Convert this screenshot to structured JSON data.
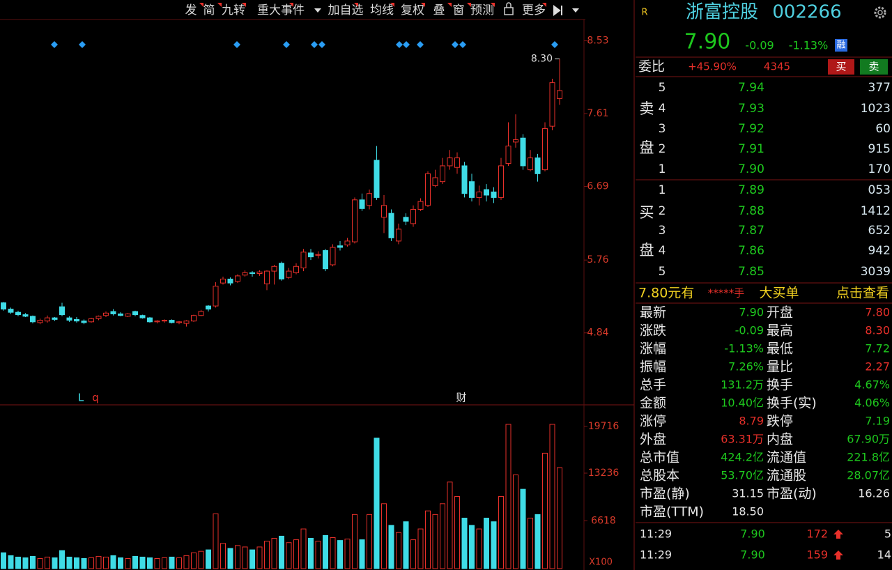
{
  "toolbar": {
    "items": [
      "发",
      "简",
      "九转",
      "重大事件",
      "加自选",
      "均线",
      "复权",
      "叠",
      "窗",
      "预测",
      "更多"
    ]
  },
  "kline": {
    "type": "candlestick",
    "up_color": "#e8302a",
    "down_color": "#3fdce6",
    "ylim": [
      3.94,
      8.78
    ],
    "yticks": [
      8.53,
      7.61,
      6.69,
      5.76,
      4.84
    ],
    "high_label": "8.30",
    "markers": [
      "L",
      "q",
      "财"
    ],
    "candles": [
      {
        "open": 5.22,
        "close": 5.14,
        "high": 5.23,
        "low": 5.12
      },
      {
        "open": 5.14,
        "close": 5.1,
        "high": 5.16,
        "low": 5.08
      },
      {
        "open": 5.1,
        "close": 5.07,
        "high": 5.12,
        "low": 5.05
      },
      {
        "open": 5.07,
        "close": 5.05,
        "high": 5.09,
        "low": 5.04
      },
      {
        "open": 5.05,
        "close": 4.98,
        "high": 5.06,
        "low": 4.96
      },
      {
        "open": 4.97,
        "close": 5.0,
        "high": 5.02,
        "low": 4.95
      },
      {
        "open": 4.99,
        "close": 5.03,
        "high": 5.06,
        "low": 4.97
      },
      {
        "open": 5.03,
        "close": 5.01,
        "high": 5.04,
        "low": 4.99
      },
      {
        "open": 5.17,
        "close": 5.07,
        "high": 5.22,
        "low": 5.05
      },
      {
        "open": 5.03,
        "close": 5.0,
        "high": 5.05,
        "low": 4.98
      },
      {
        "open": 5.01,
        "close": 4.99,
        "high": 5.04,
        "low": 4.97
      },
      {
        "open": 4.99,
        "close": 4.97,
        "high": 5.01,
        "low": 4.95
      },
      {
        "open": 4.98,
        "close": 5.02,
        "high": 5.03,
        "low": 4.97
      },
      {
        "open": 5.02,
        "close": 5.05,
        "high": 5.06,
        "low": 5.0
      },
      {
        "open": 5.06,
        "close": 5.09,
        "high": 5.11,
        "low": 5.04
      },
      {
        "open": 5.11,
        "close": 5.08,
        "high": 5.14,
        "low": 5.06
      },
      {
        "open": 5.08,
        "close": 5.06,
        "high": 5.1,
        "low": 5.05
      },
      {
        "open": 5.05,
        "close": 5.08,
        "high": 5.09,
        "low": 5.04
      },
      {
        "open": 5.11,
        "close": 5.07,
        "high": 5.12,
        "low": 5.05
      },
      {
        "open": 5.06,
        "close": 5.03,
        "high": 5.07,
        "low": 5.02
      },
      {
        "open": 5.03,
        "close": 4.98,
        "high": 5.04,
        "low": 4.97
      },
      {
        "open": 4.98,
        "close": 4.99,
        "high": 5.0,
        "low": 4.96
      },
      {
        "open": 4.99,
        "close": 5.0,
        "high": 5.01,
        "low": 4.97
      },
      {
        "open": 5.0,
        "close": 4.97,
        "high": 5.01,
        "low": 4.96
      },
      {
        "open": 4.97,
        "close": 4.98,
        "high": 4.99,
        "low": 4.95
      },
      {
        "open": 4.96,
        "close": 4.99,
        "high": 5.0,
        "low": 4.92
      },
      {
        "open": 4.99,
        "close": 5.06,
        "high": 5.07,
        "low": 4.98
      },
      {
        "open": 5.06,
        "close": 5.11,
        "high": 5.13,
        "low": 5.05
      },
      {
        "open": 5.18,
        "close": 5.14,
        "high": 5.19,
        "low": 5.11
      },
      {
        "open": 5.18,
        "close": 5.43,
        "high": 5.48,
        "low": 5.16
      },
      {
        "open": 5.47,
        "close": 5.52,
        "high": 5.55,
        "low": 5.45
      },
      {
        "open": 5.52,
        "close": 5.47,
        "high": 5.54,
        "low": 5.44
      },
      {
        "open": 5.49,
        "close": 5.56,
        "high": 5.58,
        "low": 5.47
      },
      {
        "open": 5.57,
        "close": 5.6,
        "high": 5.63,
        "low": 5.55
      },
      {
        "open": 5.6,
        "close": 5.59,
        "high": 5.62,
        "low": 5.55
      },
      {
        "open": 5.59,
        "close": 5.61,
        "high": 5.63,
        "low": 5.56
      },
      {
        "open": 5.46,
        "close": 5.62,
        "high": 5.63,
        "low": 5.38
      },
      {
        "open": 5.62,
        "close": 5.68,
        "high": 5.7,
        "low": 5.45
      },
      {
        "open": 5.72,
        "close": 5.52,
        "high": 5.74,
        "low": 5.5
      },
      {
        "open": 5.54,
        "close": 5.62,
        "high": 5.66,
        "low": 5.52
      },
      {
        "open": 5.6,
        "close": 5.68,
        "high": 5.72,
        "low": 5.58
      },
      {
        "open": 5.66,
        "close": 5.86,
        "high": 5.9,
        "low": 5.62
      },
      {
        "open": 5.85,
        "close": 5.8,
        "high": 5.9,
        "low": 5.76
      },
      {
        "open": 5.82,
        "close": 5.83,
        "high": 5.87,
        "low": 5.78
      },
      {
        "open": 5.88,
        "close": 5.65,
        "high": 5.9,
        "low": 5.62
      },
      {
        "open": 5.7,
        "close": 5.92,
        "high": 5.96,
        "low": 5.68
      },
      {
        "open": 5.94,
        "close": 5.92,
        "high": 6.0,
        "low": 5.88
      },
      {
        "open": 5.95,
        "close": 6.0,
        "high": 6.04,
        "low": 5.93
      },
      {
        "open": 5.99,
        "close": 6.52,
        "high": 6.55,
        "low": 5.97
      },
      {
        "open": 6.52,
        "close": 6.41,
        "high": 6.6,
        "low": 6.38
      },
      {
        "open": 6.45,
        "close": 6.6,
        "high": 6.65,
        "low": 6.4
      },
      {
        "open": 7.02,
        "close": 6.55,
        "high": 7.2,
        "low": 6.52
      },
      {
        "open": 6.3,
        "close": 6.45,
        "high": 6.58,
        "low": 6.1
      },
      {
        "open": 6.35,
        "close": 6.04,
        "high": 6.4,
        "low": 6.0
      },
      {
        "open": 6.0,
        "close": 6.15,
        "high": 6.22,
        "low": 5.96
      },
      {
        "open": 6.3,
        "close": 6.25,
        "high": 6.35,
        "low": 6.2
      },
      {
        "open": 6.22,
        "close": 6.4,
        "high": 6.45,
        "low": 6.18
      },
      {
        "open": 6.4,
        "close": 6.5,
        "high": 6.54,
        "low": 6.38
      },
      {
        "open": 6.45,
        "close": 6.85,
        "high": 6.88,
        "low": 6.43
      },
      {
        "open": 6.7,
        "close": 6.8,
        "high": 6.9,
        "low": 6.68
      },
      {
        "open": 6.75,
        "close": 6.95,
        "high": 7.05,
        "low": 6.72
      },
      {
        "open": 6.95,
        "close": 7.05,
        "high": 7.15,
        "low": 6.9
      },
      {
        "open": 6.93,
        "close": 7.05,
        "high": 7.12,
        "low": 6.85
      },
      {
        "open": 6.95,
        "close": 6.6,
        "high": 7.0,
        "low": 6.55
      },
      {
        "open": 6.75,
        "close": 6.55,
        "high": 6.85,
        "low": 6.5
      },
      {
        "open": 6.55,
        "close": 6.62,
        "high": 6.7,
        "low": 6.45
      },
      {
        "open": 6.65,
        "close": 6.58,
        "high": 6.72,
        "low": 6.5
      },
      {
        "open": 6.62,
        "close": 6.55,
        "high": 6.68,
        "low": 6.48
      },
      {
        "open": 6.55,
        "close": 6.95,
        "high": 7.05,
        "low": 6.52
      },
      {
        "open": 6.98,
        "close": 7.2,
        "high": 7.5,
        "low": 6.95
      },
      {
        "open": 7.25,
        "close": 7.28,
        "high": 7.6,
        "low": 7.18
      },
      {
        "open": 7.3,
        "close": 6.95,
        "high": 7.35,
        "low": 6.9
      },
      {
        "open": 6.9,
        "close": 7.05,
        "high": 7.15,
        "low": 6.88
      },
      {
        "open": 7.05,
        "close": 6.85,
        "high": 7.1,
        "low": 6.75
      },
      {
        "open": 6.9,
        "close": 7.42,
        "high": 7.5,
        "low": 6.88
      },
      {
        "open": 7.45,
        "close": 8.0,
        "high": 8.05,
        "low": 7.4
      },
      {
        "open": 7.8,
        "close": 7.9,
        "high": 8.3,
        "low": 7.72
      }
    ]
  },
  "volume": {
    "ylim": [
      0,
      21350
    ],
    "yticks": [
      19716,
      13236,
      6618
    ],
    "unit_label": "X100",
    "values": [
      2200,
      1800,
      1600,
      1500,
      1700,
      1400,
      1600,
      1500,
      2500,
      1600,
      1500,
      1400,
      1500,
      1700,
      1600,
      1800,
      1500,
      1400,
      1700,
      1600,
      1500,
      1400,
      1500,
      1600,
      1500,
      1800,
      2200,
      2400,
      2600,
      7600,
      3500,
      2800,
      3200,
      3000,
      2600,
      3000,
      3800,
      4200,
      4500,
      3600,
      4000,
      5500,
      4200,
      3800,
      4600,
      4300,
      3900,
      4100,
      7500,
      4000,
      7500,
      18100,
      9000,
      6000,
      5000,
      6500,
      4000,
      5500,
      8000,
      7500,
      9000,
      12000,
      10000,
      7000,
      6000,
      5500,
      7000,
      6500,
      10000,
      20000,
      13000,
      11000,
      7000,
      7500,
      16000,
      20000,
      14000
    ]
  },
  "header": {
    "flag": "R",
    "name": "浙富控股",
    "code": "002266"
  },
  "quote": {
    "price": "7.90",
    "change": "-0.09",
    "pct": "-1.13%",
    "badge": "融"
  },
  "weibi": {
    "label": "委比",
    "ratio": "+45.90%",
    "diff": "4345",
    "buy": "买",
    "sell": "卖"
  },
  "book": {
    "sell_side": [
      "卖",
      "盘"
    ],
    "buy_side": [
      "买",
      "盘"
    ],
    "asks": [
      {
        "level": "5",
        "price": "7.94",
        "vol": "377"
      },
      {
        "level": "4",
        "price": "7.93",
        "vol": "1023"
      },
      {
        "level": "3",
        "price": "7.92",
        "vol": "60"
      },
      {
        "level": "2",
        "price": "7.91",
        "vol": "915"
      },
      {
        "level": "1",
        "price": "7.90",
        "vol": "170"
      }
    ],
    "bids": [
      {
        "level": "1",
        "price": "7.89",
        "vol": "053"
      },
      {
        "level": "2",
        "price": "7.88",
        "vol": "1412"
      },
      {
        "level": "3",
        "price": "7.87",
        "vol": "652"
      },
      {
        "level": "4",
        "price": "7.86",
        "vol": "942"
      },
      {
        "level": "5",
        "price": "7.85",
        "vol": "3039"
      }
    ]
  },
  "big_order": {
    "price": "7.80元有",
    "qty": "*****手",
    "title": "大买单",
    "action": "点击查看"
  },
  "stats": [
    [
      {
        "label": "最新",
        "value": "7.90",
        "color": "#1ec81e"
      },
      {
        "label": "开盘",
        "value": "7.80",
        "color": "#e8302a"
      }
    ],
    [
      {
        "label": "涨跌",
        "value": "-0.09",
        "color": "#1ec81e"
      },
      {
        "label": "最高",
        "value": "8.30",
        "color": "#e8302a"
      }
    ],
    [
      {
        "label": "涨幅",
        "value": "-1.13%",
        "color": "#1ec81e"
      },
      {
        "label": "最低",
        "value": "7.72",
        "color": "#1ec81e"
      }
    ],
    [
      {
        "label": "振幅",
        "value": "7.26%",
        "color": "#1ec81e"
      },
      {
        "label": "量比",
        "value": "2.27",
        "color": "#e8302a"
      }
    ],
    [
      {
        "label": "总手",
        "value": "131.2万",
        "color": "#1ec81e"
      },
      {
        "label": "换手",
        "value": "4.67%",
        "color": "#1ec81e"
      }
    ],
    [
      {
        "label": "金额",
        "value": "10.40亿",
        "color": "#1ec81e"
      },
      {
        "label": "换手(实)",
        "value": "4.06%",
        "color": "#1ec81e"
      }
    ],
    [
      {
        "label": "涨停",
        "value": "8.79",
        "color": "#e8302a"
      },
      {
        "label": "跌停",
        "value": "7.19",
        "color": "#1ec81e"
      }
    ],
    [
      {
        "label": "外盘",
        "value": "63.31万",
        "color": "#e8302a"
      },
      {
        "label": "内盘",
        "value": "67.90万",
        "color": "#1ec81e"
      }
    ],
    [
      {
        "label": "总市值",
        "value": "424.2亿",
        "color": "#1ec81e"
      },
      {
        "label": "流通值",
        "value": "221.8亿",
        "color": "#1ec81e"
      }
    ],
    [
      {
        "label": "总股本",
        "value": "53.70亿",
        "color": "#1ec81e"
      },
      {
        "label": "流通股",
        "value": "28.07亿",
        "color": "#1ec81e"
      }
    ],
    [
      {
        "label": "市盈(静)",
        "value": "31.15",
        "color": "#e6e6e6"
      },
      {
        "label": "市盈(动)",
        "value": "16.26",
        "color": "#e6e6e6"
      }
    ],
    [
      {
        "label": "市盈(TTM)",
        "value": "18.50",
        "color": "#e6e6e6"
      }
    ]
  ],
  "trades": [
    {
      "time": "11:29",
      "price": "7.90",
      "vol": "172",
      "count": "5"
    },
    {
      "time": "11:29",
      "price": "7.90",
      "vol": "159",
      "count": "14"
    }
  ]
}
